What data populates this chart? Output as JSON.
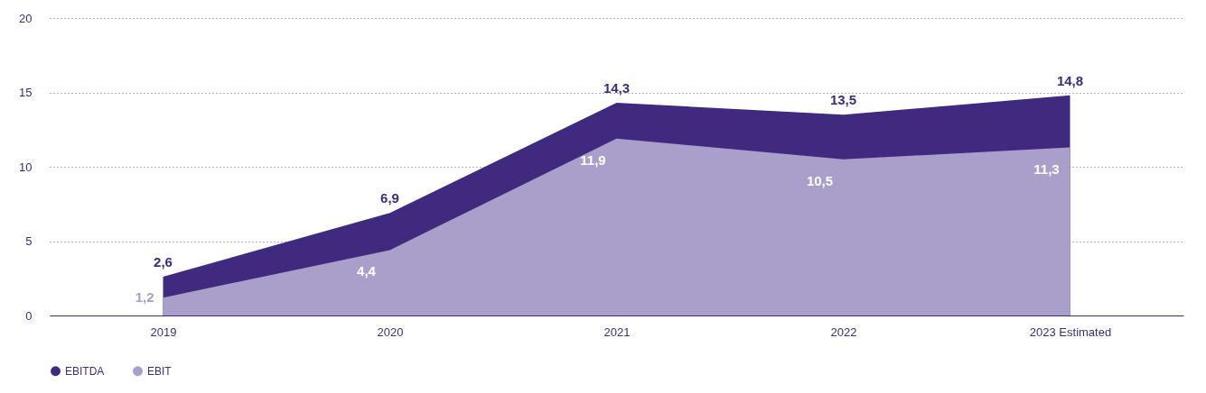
{
  "chart_data": {
    "type": "area",
    "categories": [
      "2019",
      "2020",
      "2021",
      "2022",
      "2023 Estimated"
    ],
    "series": [
      {
        "name": "EBITDA",
        "color": "#3f2a80",
        "values": [
          2.6,
          6.9,
          14.3,
          13.5,
          14.8
        ],
        "value_labels": [
          "2,6",
          "6,9",
          "14,3",
          "13,5",
          "14,8"
        ]
      },
      {
        "name": "EBIT",
        "color": "#aa9ecb",
        "values": [
          1.2,
          4.4,
          11.9,
          10.5,
          11.3
        ],
        "value_labels": [
          "1,2",
          "4,4",
          "11,9",
          "10,5",
          "11,3"
        ]
      }
    ],
    "ylim": [
      0,
      20
    ],
    "yticks": [
      0,
      5,
      10,
      15,
      20
    ],
    "grid": "y",
    "legend": "bottom left"
  }
}
